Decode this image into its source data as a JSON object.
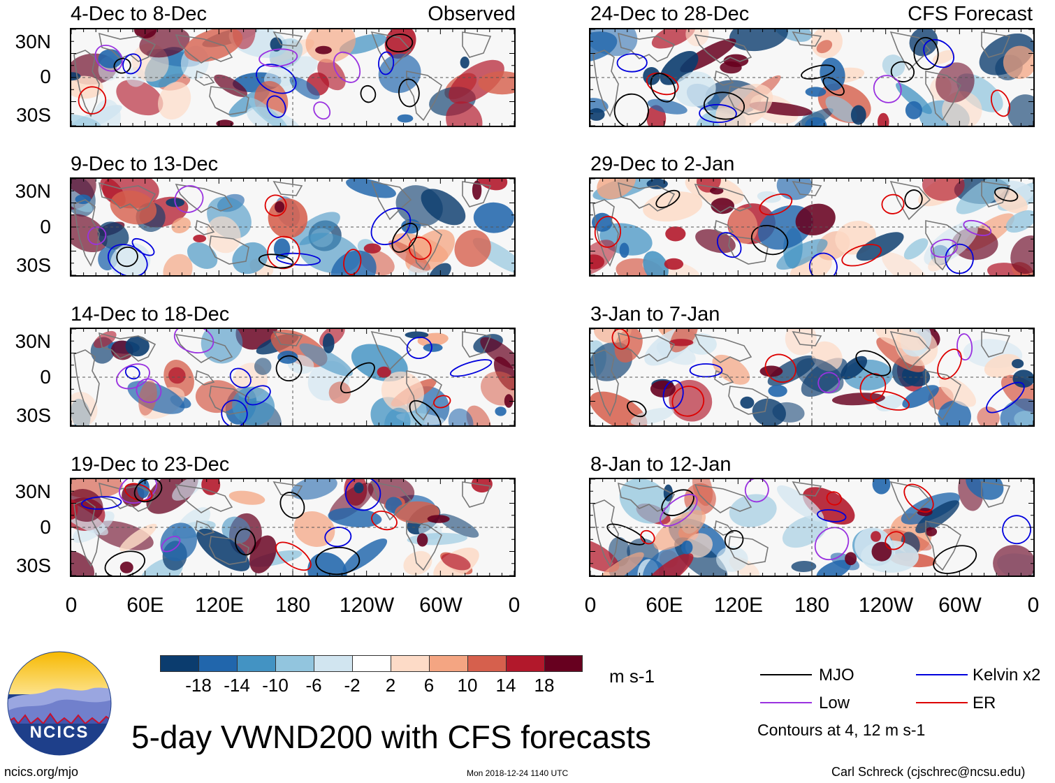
{
  "headers": {
    "observed": "Observed",
    "forecast": "CFS Forecast"
  },
  "panels": [
    {
      "title": "4-Dec to 8-Dec"
    },
    {
      "title": "9-Dec to 13-Dec"
    },
    {
      "title": "14-Dec to 18-Dec"
    },
    {
      "title": "19-Dec to 23-Dec"
    },
    {
      "title": "24-Dec to 28-Dec"
    },
    {
      "title": "29-Dec to 2-Jan"
    },
    {
      "title": "3-Jan to 7-Jan"
    },
    {
      "title": "8-Jan to 12-Jan"
    }
  ],
  "axes": {
    "lat_labels": [
      "30N",
      "0",
      "30S"
    ],
    "lon_labels": [
      "0",
      "60E",
      "120E",
      "180",
      "120W",
      "60W",
      "0"
    ]
  },
  "colorbar": {
    "ticks": [
      "-18",
      "-14",
      "-10",
      "-6",
      "-2",
      "2",
      "6",
      "10",
      "14",
      "18"
    ],
    "units": "m s-1",
    "colors": [
      "#0b3c6e",
      "#2166ac",
      "#4393c3",
      "#92c5de",
      "#d1e5f0",
      "#ffffff",
      "#fddbc7",
      "#f4a582",
      "#d6604d",
      "#b2182b",
      "#67001f"
    ]
  },
  "legend": {
    "items": [
      {
        "label": "MJO",
        "color": "#000000"
      },
      {
        "label": "Kelvin x2",
        "color": "#0000dd"
      },
      {
        "label": "Low",
        "color": "#9a32e0"
      },
      {
        "label": "ER",
        "color": "#dd0000"
      }
    ],
    "note": "Contours at 4, 12 m s-1"
  },
  "logo": {
    "text": "NCICS"
  },
  "main_title": "5-day VWND200 with CFS forecasts",
  "footer": {
    "url": "ncics.org/mjo",
    "timestamp": "Mon 2018-12-24 1140 UTC",
    "credit": "Carl Schreck (cjschrec@ncsu.edu)"
  }
}
